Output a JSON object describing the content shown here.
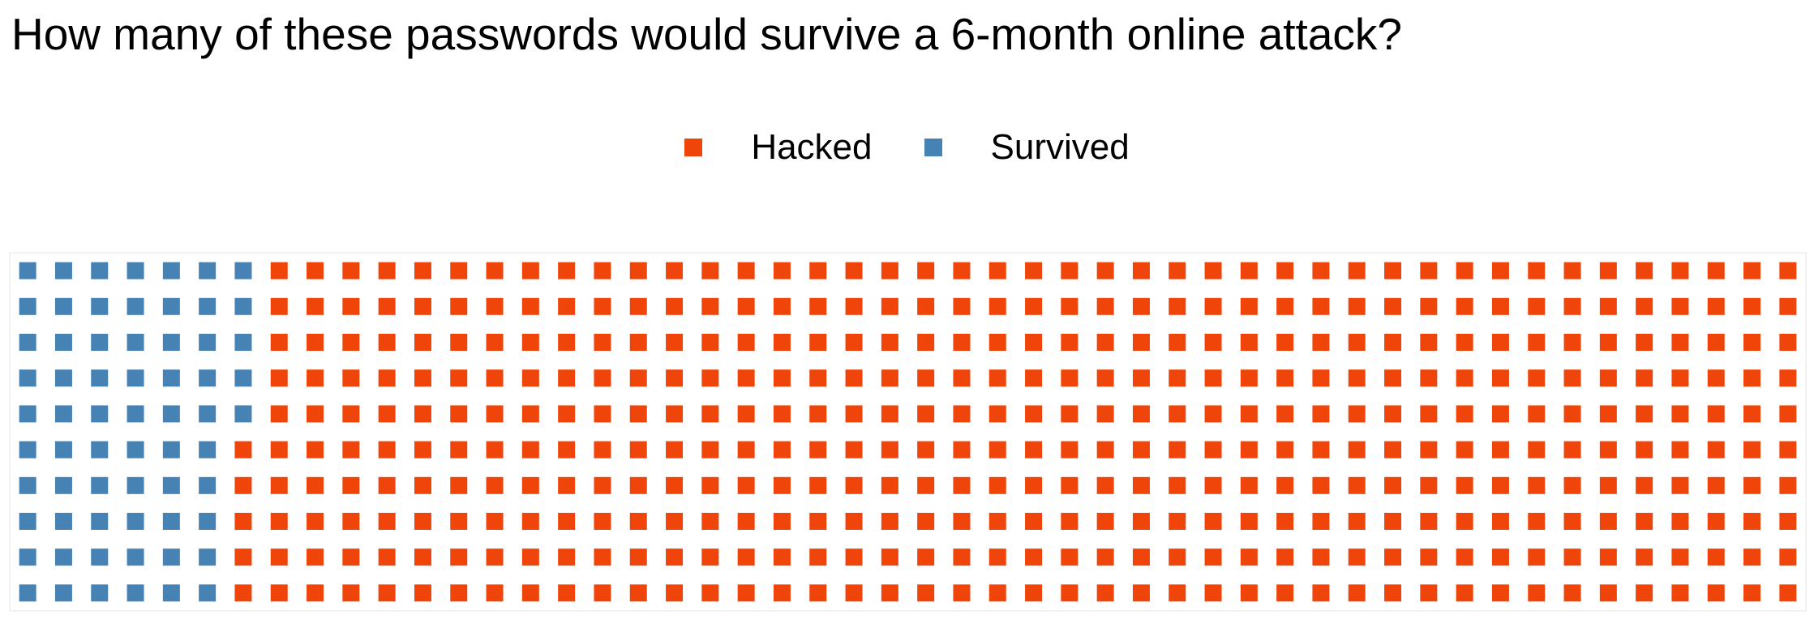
{
  "chart_data": {
    "type": "waffle",
    "title": "How many of these passwords would survive a 6-month online attack?",
    "legend": {
      "placement": "top-center",
      "entries": [
        {
          "name": "Hacked",
          "color": "#F0450A"
        },
        {
          "name": "Survived",
          "color": "#4682B4"
        }
      ]
    },
    "grid": {
      "rows": 10,
      "columns": 50,
      "fill_order": "column-major",
      "total": 500
    },
    "values": {
      "Survived": 65,
      "Hacked": 435
    }
  }
}
